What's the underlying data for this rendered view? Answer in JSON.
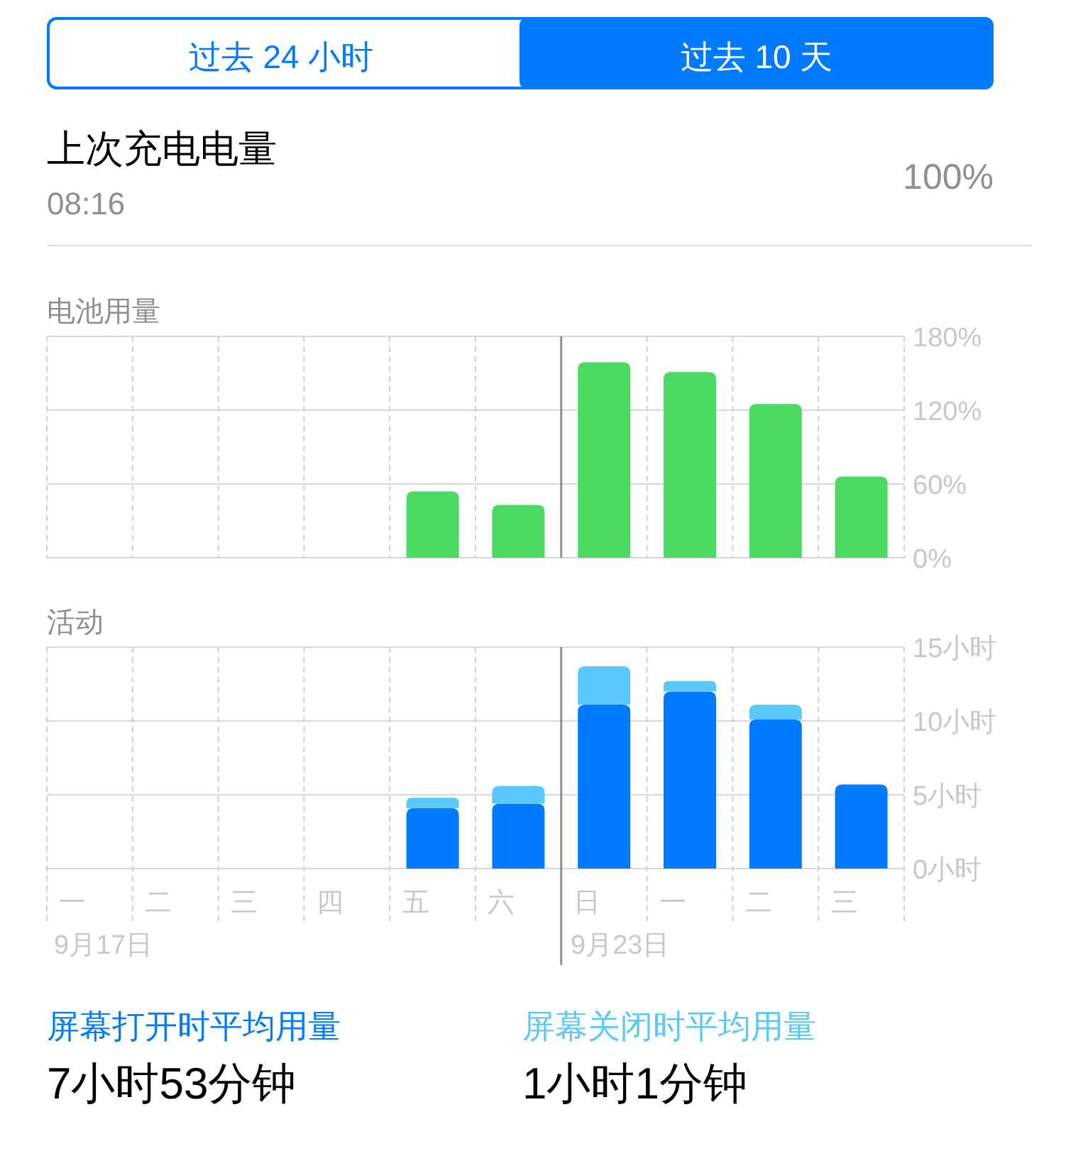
{
  "chart_data": [
    {
      "type": "bar",
      "title": "电池用量",
      "categories": [
        "一",
        "二",
        "三",
        "四",
        "五",
        "六",
        "日",
        "一",
        "二",
        "三"
      ],
      "series": [
        {
          "color": "#4cd964",
          "values": [
            null,
            null,
            null,
            null,
            54,
            43,
            159,
            151,
            125,
            66
          ]
        }
      ],
      "ylim": [
        0,
        180
      ],
      "yticks": [
        {
          "value": 0,
          "label": "0%"
        },
        {
          "value": 60,
          "label": "60%"
        },
        {
          "value": 120,
          "label": "120%"
        },
        {
          "value": 180,
          "label": "180%"
        }
      ],
      "grid": true,
      "tick_labels": "y",
      "ref_lines": [
        {
          "axis": "x",
          "value": "日"
        }
      ],
      "annotations": [
        "过去 24 小时",
        "过去 10 天",
        "上次充电电量",
        "08:16",
        "100%"
      ]
    },
    {
      "type": "bar",
      "title": "活动",
      "categories": [
        "一",
        "二",
        "三",
        "四",
        "五",
        "六",
        "日",
        "一",
        "二",
        "三"
      ],
      "stacked": true,
      "series": [
        {
          "name": "屏幕打开时平均用量",
          "color": "#007aff",
          "values": [
            null,
            null,
            null,
            null,
            4.1,
            4.4,
            11.1,
            12.0,
            10.1,
            5.7
          ]
        },
        {
          "name": "屏幕关闭时平均用量",
          "color": "#5ac8fa",
          "values": [
            null,
            null,
            null,
            null,
            0.7,
            1.2,
            2.6,
            0.7,
            1.0,
            0
          ]
        }
      ],
      "ylim": [
        0,
        15
      ],
      "yticks": [
        {
          "value": 0,
          "label": "0小时"
        },
        {
          "value": 5,
          "label": "5小时"
        },
        {
          "value": 10,
          "label": "10小时"
        },
        {
          "value": 15,
          "label": "15小时"
        }
      ],
      "grid": true,
      "ref_lines": [
        {
          "axis": "x",
          "value": "日"
        }
      ],
      "annotations": [
        "9月17日",
        "9月23日",
        "7小时53分钟",
        "1小时1分钟"
      ]
    }
  ]
}
